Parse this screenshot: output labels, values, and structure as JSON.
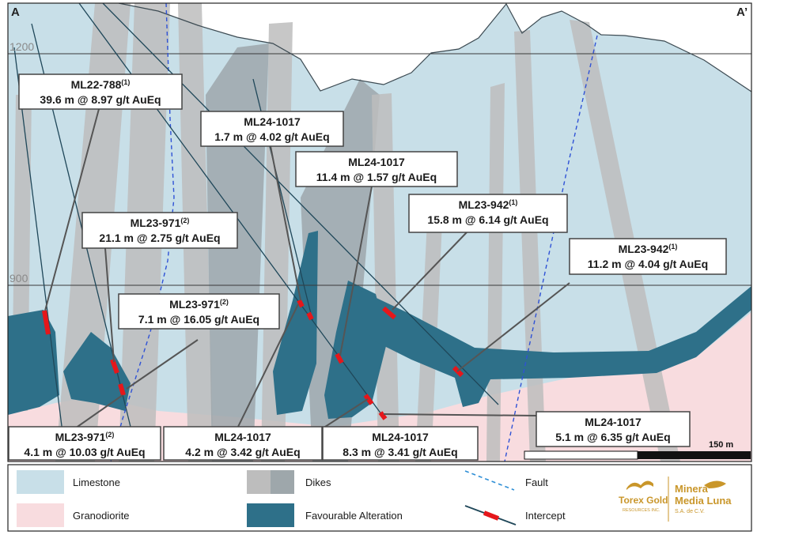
{
  "section": {
    "left_label": "A",
    "right_label": "A’",
    "elevations": [
      {
        "label": "1200"
      },
      {
        "label": "900"
      }
    ],
    "scale_bar_label": "150 m"
  },
  "colors": {
    "limestone": "#c8dfe8",
    "granodiorite": "#f8dcdf",
    "dike_light": "#bdbdbd",
    "dike_dark": "#9ea7ab",
    "alteration": "#2e7089",
    "fault": "#2f52d6",
    "intercept": "#e5171b",
    "drill_trace": "#1f4759"
  },
  "callouts": [
    {
      "hole": "ML22-788",
      "note": "(1)",
      "interval": "39.6 m @ 8.97 g/t AuEq"
    },
    {
      "hole": "ML24-1017",
      "note": "",
      "interval": "1.7 m @ 4.02 g/t AuEq"
    },
    {
      "hole": "ML24-1017",
      "note": "",
      "interval": "11.4 m @ 1.57 g/t AuEq"
    },
    {
      "hole": "ML23-942",
      "note": "(1)",
      "interval": "15.8 m @ 6.14 g/t AuEq"
    },
    {
      "hole": "ML23-971",
      "note": "(2)",
      "interval": "21.1 m @ 2.75 g/t AuEq"
    },
    {
      "hole": "ML23-942",
      "note": "(1)",
      "interval": "11.2 m @ 4.04 g/t AuEq"
    },
    {
      "hole": "ML23-971",
      "note": "(2)",
      "interval": "7.1 m @  16.05 g/t AuEq"
    },
    {
      "hole": "ML23-971",
      "note": "(2)",
      "interval": "4.1 m @ 10.03 g/t AuEq"
    },
    {
      "hole": "ML24-1017",
      "note": "",
      "interval": "4.2 m @ 3.42 g/t AuEq"
    },
    {
      "hole": "ML24-1017",
      "note": "",
      "interval": "8.3 m @ 3.41 g/t AuEq"
    },
    {
      "hole": "ML24-1017",
      "note": "",
      "interval": "5.1 m @ 6.35 g/t AuEq"
    }
  ],
  "legend": {
    "limestone": "Limestone",
    "granodiorite": "Granodiorite",
    "dikes": "Dikes",
    "alteration": "Favourable Alteration",
    "fault": "Fault",
    "intercept": "Intercept"
  },
  "logos": {
    "torex_line1": "Torex Gold",
    "torex_line2": "RESOURCES INC.",
    "media_line1": "Minera",
    "media_line2": "Media Luna",
    "media_line3": "S.A. de C.V."
  }
}
